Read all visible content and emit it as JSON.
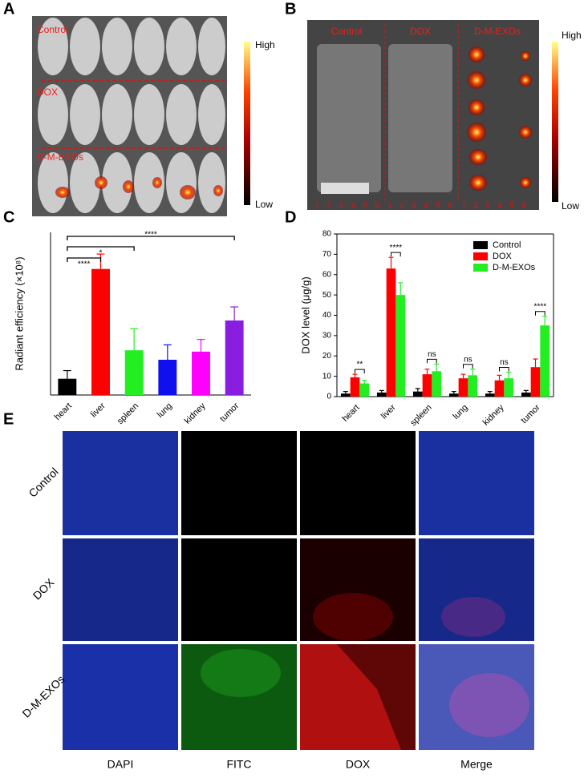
{
  "panel_labels": [
    "A",
    "B",
    "C",
    "D",
    "E"
  ],
  "panel_a": {
    "groups": [
      "Control",
      "DOX",
      "D-M-EXOs"
    ],
    "scale": [
      "High",
      "Low"
    ]
  },
  "panel_b": {
    "groups": [
      "Control",
      "DOX",
      "D-M-EXOs"
    ],
    "scale": [
      "High",
      "Low"
    ],
    "lanes": [
      "1",
      "2",
      "3",
      "4",
      "5",
      "6"
    ]
  },
  "chart_data": [
    {
      "type": "bar",
      "ylabel": "Radiant efficiency (×10⁸)",
      "categories": [
        "heart",
        "liver",
        "spleen",
        "lung",
        "kidney",
        "tumor"
      ],
      "values": [
        6,
        46.5,
        16.5,
        13,
        16,
        27.5
      ],
      "errors": [
        3,
        5.5,
        8,
        5.5,
        4.5,
        5
      ],
      "colors": [
        "#000000",
        "#ff0000",
        "#22ee22",
        "#1010ee",
        "#ff00ff",
        "#8a1ee0"
      ],
      "ylim": [
        0,
        60
      ],
      "annotations": [
        "****",
        "*",
        "****"
      ]
    },
    {
      "type": "bar",
      "ylabel": "DOX level (μg/g)",
      "categories": [
        "heart",
        "liver",
        "spleen",
        "lung",
        "kidney",
        "tumor"
      ],
      "series": [
        {
          "name": "Control",
          "color": "#000000",
          "values": [
            1.5,
            2,
            2.5,
            1.5,
            1.5,
            2
          ],
          "errors": [
            1,
            1,
            1.5,
            1,
            1,
            1
          ]
        },
        {
          "name": "DOX",
          "color": "#ff0000",
          "values": [
            9.5,
            63,
            11,
            9,
            8,
            14.5
          ],
          "errors": [
            1.5,
            5.5,
            2.5,
            2,
            2.5,
            4
          ]
        },
        {
          "name": "D-M-EXOs",
          "color": "#22ee22",
          "values": [
            6.5,
            50,
            12.5,
            10.5,
            9,
            35
          ],
          "errors": [
            1.5,
            6,
            3.5,
            3,
            3,
            4.5
          ]
        }
      ],
      "ylim": [
        0,
        80
      ],
      "yticks": [
        0,
        10,
        20,
        30,
        40,
        50,
        60,
        70,
        80
      ],
      "legend": "upper right",
      "annotations": [
        "**",
        "****",
        "ns",
        "ns",
        "ns",
        "****"
      ]
    }
  ],
  "panel_e": {
    "rows": [
      "Control",
      "DOX",
      "D-M-EXOs"
    ],
    "columns": [
      "DAPI",
      "FITC",
      "DOX",
      "Merge"
    ]
  }
}
